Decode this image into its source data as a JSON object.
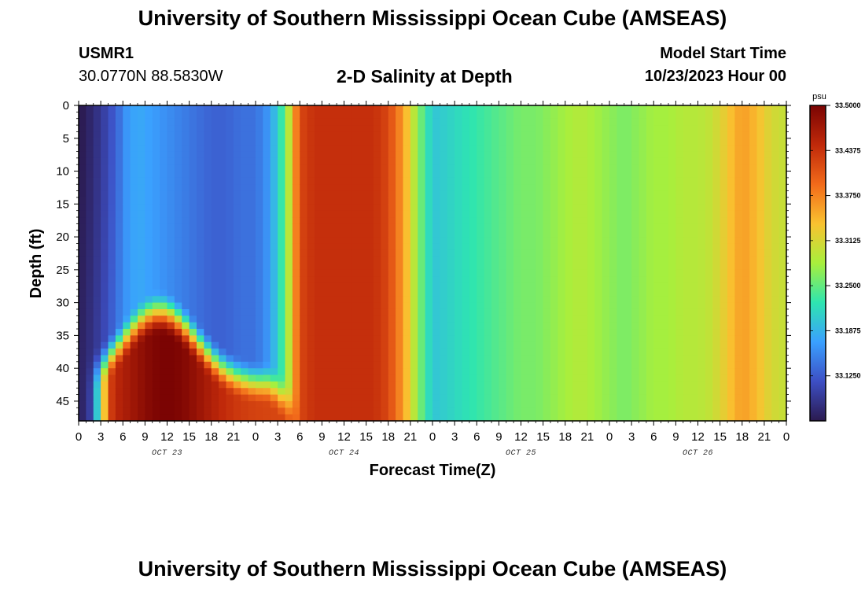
{
  "header": {
    "main_title": "University of Southern Mississippi Ocean Cube (AMSEAS)",
    "station_id": "USMR1",
    "station_coords": "30.0770N  88.5830W",
    "plot_title": "2-D Salinity at Depth",
    "model_start_label": "Model Start Time",
    "model_start_value": "10/23/2023 Hour 00"
  },
  "footer": {
    "repeated_title": "University of Southern Mississippi Ocean Cube (AMSEAS)"
  },
  "chart_data": {
    "type": "heatmap",
    "title": "2-D Salinity at Depth",
    "xlabel": "Forecast Time(Z)",
    "ylabel": "Depth (ft)",
    "x_unit": "hours since 10/23/2023 00Z",
    "xlim": [
      0,
      96
    ],
    "ylim": [
      0,
      48
    ],
    "y_inverted": true,
    "x_tick_labels": [
      "0",
      "3",
      "6",
      "9",
      "12",
      "15",
      "18",
      "21",
      "0",
      "3",
      "6",
      "9",
      "12",
      "15",
      "18",
      "21",
      "0",
      "3",
      "6",
      "9",
      "12",
      "15",
      "18",
      "21",
      "0",
      "3",
      "6",
      "9",
      "12",
      "15",
      "18",
      "21",
      "0"
    ],
    "y_tick_labels": [
      "0",
      "5",
      "10",
      "15",
      "20",
      "25",
      "30",
      "35",
      "40",
      "45"
    ],
    "date_labels": [
      {
        "text": "OCT 23",
        "hour": 12
      },
      {
        "text": "OCT 24",
        "hour": 36
      },
      {
        "text": "OCT 25",
        "hour": 60
      },
      {
        "text": "OCT 26",
        "hour": 84
      }
    ],
    "colorbar": {
      "unit_label": "psu",
      "min": 33.0625,
      "max": 33.5,
      "tick_labels": [
        "33.5000",
        "33.4375",
        "33.3750",
        "33.3125",
        "33.2500",
        "33.1875",
        "33.1250"
      ],
      "colors": [
        "#2b1a4f",
        "#3d4fc4",
        "#3aa0ff",
        "#2ee5b0",
        "#a8ef3c",
        "#f9c230",
        "#f26a1a",
        "#c0290a",
        "#7a0403"
      ]
    },
    "surface_salinity_series": {
      "hours": [
        0,
        2,
        4,
        6,
        8,
        10,
        12,
        14,
        16,
        18,
        20,
        22,
        24,
        26,
        28,
        30,
        32,
        34,
        36,
        38,
        40,
        42,
        44,
        46,
        48,
        50,
        52,
        54,
        56,
        58,
        60,
        62,
        64,
        66,
        68,
        70,
        72,
        74,
        76,
        78,
        80,
        82,
        84,
        86,
        88,
        90,
        92,
        94,
        96
      ],
      "values": [
        33.07,
        33.09,
        33.12,
        33.16,
        33.18,
        33.17,
        33.16,
        33.15,
        33.14,
        33.13,
        33.13,
        33.14,
        33.14,
        33.17,
        33.25,
        33.42,
        33.44,
        33.44,
        33.44,
        33.44,
        33.44,
        33.42,
        33.36,
        33.27,
        33.2,
        33.21,
        33.22,
        33.23,
        33.24,
        33.25,
        33.26,
        33.26,
        33.27,
        33.28,
        33.29,
        33.28,
        33.27,
        33.26,
        33.27,
        33.28,
        33.28,
        33.29,
        33.29,
        33.3,
        33.33,
        33.36,
        33.34,
        33.31,
        33.3
      ]
    },
    "bottom_layer_note": "Below ~35-47 ft a high-salinity bottom layer (~33.40-33.50 psu) spans hours 3-30, peaking near hour 12; elsewhere salinity is nearly uniform with depth."
  }
}
